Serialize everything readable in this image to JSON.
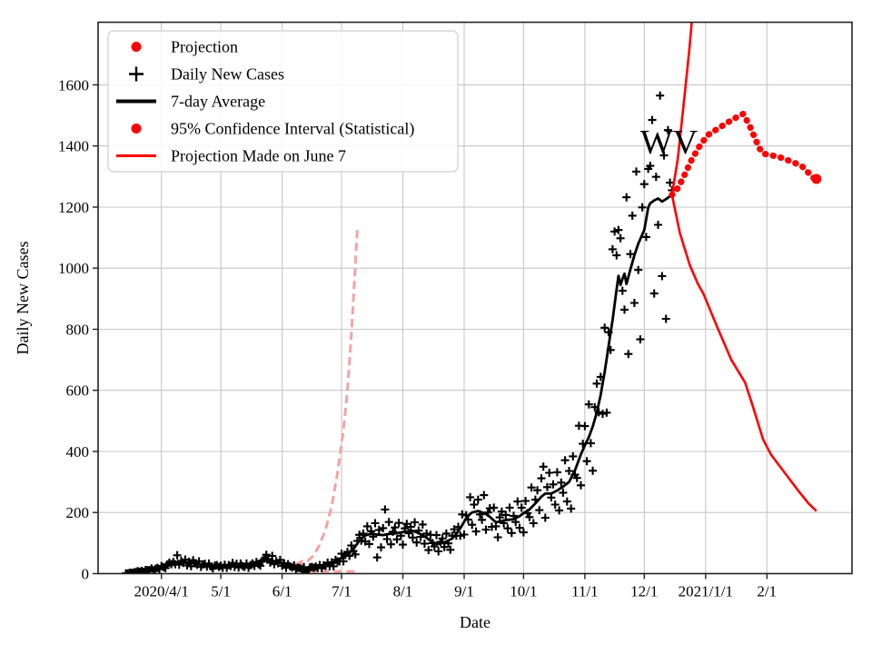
{
  "chart_data": {
    "type": "line",
    "title": "",
    "xlabel": "Date",
    "ylabel": "Daily New Cases",
    "annotation": {
      "text": "WV",
      "date": "2020-11-29",
      "value": 1375
    },
    "xlim": [
      "2020-02-29",
      "2021-03-16"
    ],
    "ylim": [
      0,
      1805
    ],
    "grid": true,
    "x_ticks": [
      {
        "date": "2020-04-01",
        "label": "2020/4/1"
      },
      {
        "date": "2020-05-01",
        "label": "5/1"
      },
      {
        "date": "2020-06-01",
        "label": "6/1"
      },
      {
        "date": "2020-07-01",
        "label": "7/1"
      },
      {
        "date": "2020-08-01",
        "label": "8/1"
      },
      {
        "date": "2020-09-01",
        "label": "9/1"
      },
      {
        "date": "2020-10-01",
        "label": "10/1"
      },
      {
        "date": "2020-11-01",
        "label": "11/1"
      },
      {
        "date": "2020-12-01",
        "label": "12/1"
      },
      {
        "date": "2021-01-01",
        "label": "2021/1/1"
      },
      {
        "date": "2021-02-01",
        "label": "2/1"
      }
    ],
    "y_ticks": [
      {
        "value": 0,
        "label": "0"
      },
      {
        "value": 200,
        "label": "200"
      },
      {
        "value": 400,
        "label": "400"
      },
      {
        "value": 600,
        "label": "600"
      },
      {
        "value": 800,
        "label": "800"
      },
      {
        "value": 1000,
        "label": "1000"
      },
      {
        "value": 1200,
        "label": "1200"
      },
      {
        "value": 1400,
        "label": "1400"
      },
      {
        "value": 1600,
        "label": "1600"
      }
    ],
    "colors": {
      "red": "#ff0000",
      "black": "#000000",
      "pink": "#f5a3a3",
      "grid": "#c6c6c6",
      "spine": "#222222",
      "legend_border": "#d5d5d5"
    },
    "legend": {
      "position": "upper left",
      "entries": [
        {
          "label": "Projection",
          "glyph": "dot",
          "color": "#ff0000"
        },
        {
          "label": "Daily New Cases",
          "glyph": "plus",
          "color": "#000000"
        },
        {
          "label": "7-day Average",
          "glyph": "line",
          "color": "#000000"
        },
        {
          "label": "95% Confidence Interval (Statistical)",
          "glyph": "dot",
          "color": "#ff0000"
        },
        {
          "label": "Projection Made on June 7",
          "glyph": "line",
          "color": "#ff0000"
        }
      ]
    },
    "series": {
      "avg7": {
        "name": "7-day Average",
        "style": "solid",
        "color": "#000000",
        "width": 2.8,
        "points": [
          [
            "2020-03-14",
            1
          ],
          [
            "2020-03-18",
            4
          ],
          [
            "2020-03-22",
            8
          ],
          [
            "2020-03-26",
            12
          ],
          [
            "2020-03-31",
            18
          ],
          [
            "2020-04-04",
            28
          ],
          [
            "2020-04-08",
            37
          ],
          [
            "2020-04-11",
            40
          ],
          [
            "2020-04-14",
            34
          ],
          [
            "2020-04-17",
            37
          ],
          [
            "2020-04-20",
            31
          ],
          [
            "2020-04-24",
            27
          ],
          [
            "2020-04-28",
            24
          ],
          [
            "2020-05-02",
            23
          ],
          [
            "2020-05-06",
            27
          ],
          [
            "2020-05-10",
            29
          ],
          [
            "2020-05-13",
            25
          ],
          [
            "2020-05-16",
            27
          ],
          [
            "2020-05-19",
            31
          ],
          [
            "2020-05-22",
            40
          ],
          [
            "2020-05-25",
            44
          ],
          [
            "2020-05-28",
            41
          ],
          [
            "2020-05-31",
            35
          ],
          [
            "2020-06-03",
            28
          ],
          [
            "2020-06-07",
            21
          ],
          [
            "2020-06-10",
            16
          ],
          [
            "2020-06-13",
            17
          ],
          [
            "2020-06-16",
            19
          ],
          [
            "2020-06-19",
            22
          ],
          [
            "2020-06-22",
            25
          ],
          [
            "2020-06-25",
            30
          ],
          [
            "2020-06-28",
            38
          ],
          [
            "2020-07-01",
            50
          ],
          [
            "2020-07-04",
            62
          ],
          [
            "2020-07-07",
            80
          ],
          [
            "2020-07-10",
            108
          ],
          [
            "2020-07-13",
            125
          ],
          [
            "2020-07-16",
            131
          ],
          [
            "2020-07-19",
            128
          ],
          [
            "2020-07-22",
            126
          ],
          [
            "2020-07-25",
            130
          ],
          [
            "2020-07-28",
            131
          ],
          [
            "2020-07-31",
            135
          ],
          [
            "2020-08-03",
            138
          ],
          [
            "2020-08-06",
            140
          ],
          [
            "2020-08-09",
            133
          ],
          [
            "2020-08-12",
            122
          ],
          [
            "2020-08-15",
            108
          ],
          [
            "2020-08-18",
            97
          ],
          [
            "2020-08-21",
            100
          ],
          [
            "2020-08-24",
            108
          ],
          [
            "2020-08-26",
            115
          ],
          [
            "2020-08-28",
            130
          ],
          [
            "2020-08-30",
            148
          ],
          [
            "2020-09-01",
            170
          ],
          [
            "2020-09-03",
            190
          ],
          [
            "2020-09-05",
            200
          ],
          [
            "2020-09-08",
            205
          ],
          [
            "2020-09-10",
            200
          ],
          [
            "2020-09-12",
            195
          ],
          [
            "2020-09-14",
            186
          ],
          [
            "2020-09-17",
            168
          ],
          [
            "2020-09-20",
            172
          ],
          [
            "2020-09-23",
            176
          ],
          [
            "2020-09-26",
            178
          ],
          [
            "2020-09-29",
            188
          ],
          [
            "2020-10-01",
            198
          ],
          [
            "2020-10-04",
            210
          ],
          [
            "2020-10-07",
            230
          ],
          [
            "2020-10-10",
            252
          ],
          [
            "2020-10-12",
            262
          ],
          [
            "2020-10-15",
            262
          ],
          [
            "2020-10-18",
            272
          ],
          [
            "2020-10-21",
            285
          ],
          [
            "2020-10-24",
            300
          ],
          [
            "2020-10-27",
            338
          ],
          [
            "2020-10-30",
            390
          ],
          [
            "2020-11-01",
            420
          ],
          [
            "2020-11-03",
            447
          ],
          [
            "2020-11-05",
            482
          ],
          [
            "2020-11-07",
            527
          ],
          [
            "2020-11-09",
            585
          ],
          [
            "2020-11-11",
            660
          ],
          [
            "2020-11-13",
            745
          ],
          [
            "2020-11-15",
            830
          ],
          [
            "2020-11-17",
            930
          ],
          [
            "2020-11-18",
            975
          ],
          [
            "2020-11-19",
            945
          ],
          [
            "2020-11-20",
            965
          ],
          [
            "2020-11-21",
            982
          ],
          [
            "2020-11-22",
            948
          ],
          [
            "2020-11-24",
            996
          ],
          [
            "2020-11-26",
            1042
          ],
          [
            "2020-11-28",
            1080
          ],
          [
            "2020-11-30",
            1110
          ],
          [
            "2020-12-01",
            1125
          ],
          [
            "2020-12-02",
            1160
          ],
          [
            "2020-12-03",
            1198
          ],
          [
            "2020-12-04",
            1212
          ],
          [
            "2020-12-06",
            1222
          ],
          [
            "2020-12-08",
            1228
          ],
          [
            "2020-12-10",
            1218
          ],
          [
            "2020-12-12",
            1226
          ],
          [
            "2020-12-15",
            1240
          ]
        ]
      },
      "daily": {
        "name": "Daily New Cases",
        "marker": "plus",
        "color": "#000000",
        "start": "2020-03-14",
        "end": "2020-12-15",
        "noise_cycle": [
          1.1,
          0.84,
          1.22,
          0.75,
          1.06,
          0.93,
          1.28,
          0.8,
          1.12,
          0.68,
          1.18,
          0.96,
          0.88,
          1.3,
          0.74,
          1.05,
          1.15,
          0.85,
          1.24,
          0.92,
          0.7,
          1.08,
          1.18,
          0.95
        ],
        "overrides": {
          "2020-04-09": 60,
          "2020-05-24": 62,
          "2020-05-27": 58,
          "2020-06-13": 5,
          "2020-07-19": 53,
          "2020-07-23": 210,
          "2020-10-11": 350,
          "2020-10-14": 330,
          "2020-11-16": 1120,
          "2020-11-18": 1125,
          "2020-11-19": 1098,
          "2020-12-01": 1275,
          "2020-12-03": 1325,
          "2020-12-04": 1335,
          "2020-12-14": 1280,
          "2020-12-15": 1255
        }
      },
      "projection": {
        "name": "Projection",
        "style": "dotted-thick",
        "color": "#ff0000",
        "width": 7,
        "end_dot": true,
        "points": [
          [
            "2020-12-15",
            1240
          ],
          [
            "2020-12-18",
            1262
          ],
          [
            "2020-12-21",
            1300
          ],
          [
            "2020-12-25",
            1355
          ],
          [
            "2020-12-29",
            1400
          ],
          [
            "2021-01-02",
            1435
          ],
          [
            "2021-01-08",
            1460
          ],
          [
            "2021-01-13",
            1480
          ],
          [
            "2021-01-17",
            1495
          ],
          [
            "2021-01-20",
            1505
          ],
          [
            "2021-01-23",
            1470
          ],
          [
            "2021-01-26",
            1425
          ],
          [
            "2021-01-28",
            1395
          ],
          [
            "2021-01-30",
            1375
          ],
          [
            "2021-02-03",
            1370
          ],
          [
            "2021-02-08",
            1362
          ],
          [
            "2021-02-12",
            1352
          ],
          [
            "2021-02-16",
            1342
          ],
          [
            "2021-02-19",
            1332
          ],
          [
            "2021-02-22",
            1312
          ],
          [
            "2021-02-24",
            1297
          ],
          [
            "2021-02-26",
            1292
          ]
        ]
      },
      "stat_ci_upper": {
        "name": "95% Confidence Interval (Statistical) upper bound",
        "style": "solid",
        "color": "#ff0000",
        "width": 2.6,
        "points": [
          [
            "2020-12-15",
            1240
          ],
          [
            "2020-12-18",
            1360
          ],
          [
            "2020-12-21",
            1540
          ],
          [
            "2020-12-24",
            1730
          ],
          [
            "2020-12-26",
            1880
          ]
        ]
      },
      "stat_ci_lower": {
        "name": "95% Confidence Interval (Statistical) lower bound",
        "style": "solid",
        "color": "#ff0000",
        "width": 2.6,
        "points": [
          [
            "2020-12-15",
            1240
          ],
          [
            "2020-12-19",
            1115
          ],
          [
            "2020-12-24",
            1010
          ],
          [
            "2020-12-28",
            950
          ],
          [
            "2020-12-31",
            915
          ],
          [
            "2021-01-07",
            805
          ],
          [
            "2021-01-14",
            700
          ],
          [
            "2021-01-21",
            625
          ],
          [
            "2021-01-25",
            545
          ],
          [
            "2021-01-30",
            440
          ],
          [
            "2021-02-03",
            390
          ],
          [
            "2021-02-10",
            330
          ],
          [
            "2021-02-17",
            270
          ],
          [
            "2021-02-22",
            230
          ],
          [
            "2021-02-26",
            205
          ]
        ]
      },
      "june7_upper": {
        "name": "Projection Made on June 7 upper CI",
        "style": "dashed",
        "color": "#f5a3a3",
        "width": 3,
        "points": [
          [
            "2020-06-08",
            22
          ],
          [
            "2020-06-11",
            30
          ],
          [
            "2020-06-14",
            42
          ],
          [
            "2020-06-17",
            60
          ],
          [
            "2020-06-20",
            95
          ],
          [
            "2020-06-23",
            145
          ],
          [
            "2020-06-26",
            220
          ],
          [
            "2020-06-29",
            330
          ],
          [
            "2020-07-02",
            470
          ],
          [
            "2020-07-04",
            600
          ],
          [
            "2020-07-06",
            780
          ],
          [
            "2020-07-08",
            1010
          ],
          [
            "2020-07-09",
            1130
          ]
        ]
      },
      "june7_lower": {
        "name": "Projection Made on June 7 lower CI",
        "style": "dashed",
        "color": "#f5a3a3",
        "width": 3,
        "points": [
          [
            "2020-06-08",
            16
          ],
          [
            "2020-06-12",
            9
          ],
          [
            "2020-06-20",
            7
          ],
          [
            "2020-06-28",
            7
          ],
          [
            "2020-07-04",
            7
          ],
          [
            "2020-07-08",
            7
          ]
        ]
      },
      "june7_start_arrow": {
        "date": "2020-06-06",
        "value": 30,
        "color": "#f5a3a3"
      }
    }
  }
}
